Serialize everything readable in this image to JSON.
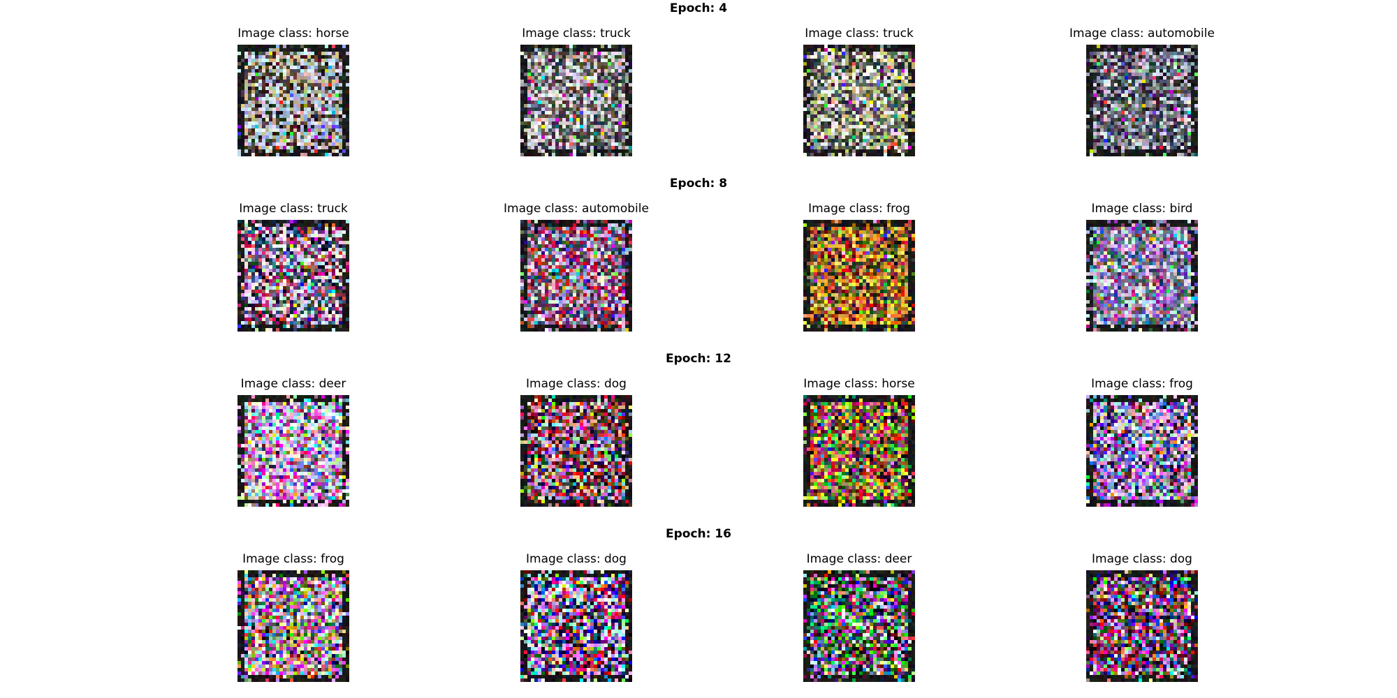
{
  "figure": {
    "rows": [
      {
        "title": "Epoch: 4",
        "images": [
          {
            "label": "Image class: horse",
            "palette": [
              "#d8e6f5",
              "#9fb7d8",
              "#5a4a42",
              "#2a2218",
              "#c8b28e"
            ]
          },
          {
            "label": "Image class: truck",
            "palette": [
              "#e8e8ee",
              "#8a8a8a",
              "#3a3a3a",
              "#5a4a4a",
              "#c0c0c8"
            ]
          },
          {
            "label": "Image class: truck",
            "palette": [
              "#f0f0f0",
              "#9a9a90",
              "#5a5a5a",
              "#c8c878",
              "#303030"
            ]
          },
          {
            "label": "Image class: automobile",
            "palette": [
              "#9aa0b0",
              "#d8d8e8",
              "#4a4a58",
              "#6a6a78",
              "#282830"
            ]
          }
        ]
      },
      {
        "title": "Epoch: 8",
        "images": [
          {
            "label": "Image class: truck",
            "palette": [
              "#f8f0f8",
              "#4a5a80",
              "#b03060",
              "#202030",
              "#c8c0e8"
            ]
          },
          {
            "label": "Image class: automobile",
            "palette": [
              "#c02030",
              "#5a3a5a",
              "#e0d0e8",
              "#3a4a6a",
              "#a090c0"
            ]
          },
          {
            "label": "Image class: frog",
            "palette": [
              "#e0a030",
              "#f0d050",
              "#c04020",
              "#6a5a30",
              "#3a2a20"
            ]
          },
          {
            "label": "Image class: bird",
            "palette": [
              "#6a70b0",
              "#c0a0d0",
              "#3a5a5a",
              "#e0e0f0",
              "#8a4a8a"
            ]
          }
        ]
      },
      {
        "title": "Epoch: 12",
        "images": [
          {
            "label": "Image class: deer",
            "palette": [
              "#f8f8f8",
              "#e040a0",
              "#a0c0f0",
              "#6a4a6a",
              "#f0d0e0"
            ]
          },
          {
            "label": "Image class: dog",
            "palette": [
              "#c02020",
              "#101020",
              "#a0a0c0",
              "#e0c0c0",
              "#5a2a3a"
            ]
          },
          {
            "label": "Image class: horse",
            "palette": [
              "#c04020",
              "#30a030",
              "#f0d050",
              "#202020",
              "#a03070"
            ]
          },
          {
            "label": "Image class: frog",
            "palette": [
              "#e0e0f0",
              "#a050c0",
              "#5070c0",
              "#202040",
              "#f0a0d0"
            ]
          }
        ]
      },
      {
        "title": "Epoch: 16",
        "images": [
          {
            "label": "Image class: frog",
            "palette": [
              "#f8f8f8",
              "#303030",
              "#e060c0",
              "#c0a060",
              "#8080c0"
            ]
          },
          {
            "label": "Image class: dog",
            "palette": [
              "#e0e0f0",
              "#c02040",
              "#2030a0",
              "#101010",
              "#f0c0f0"
            ]
          },
          {
            "label": "Image class: deer",
            "palette": [
              "#101010",
              "#303050",
              "#a040a0",
              "#20a040",
              "#d0d0d0"
            ]
          },
          {
            "label": "Image class: dog",
            "palette": [
              "#101018",
              "#c03050",
              "#e0c0e0",
              "#3040a0",
              "#602040"
            ]
          }
        ]
      }
    ]
  }
}
